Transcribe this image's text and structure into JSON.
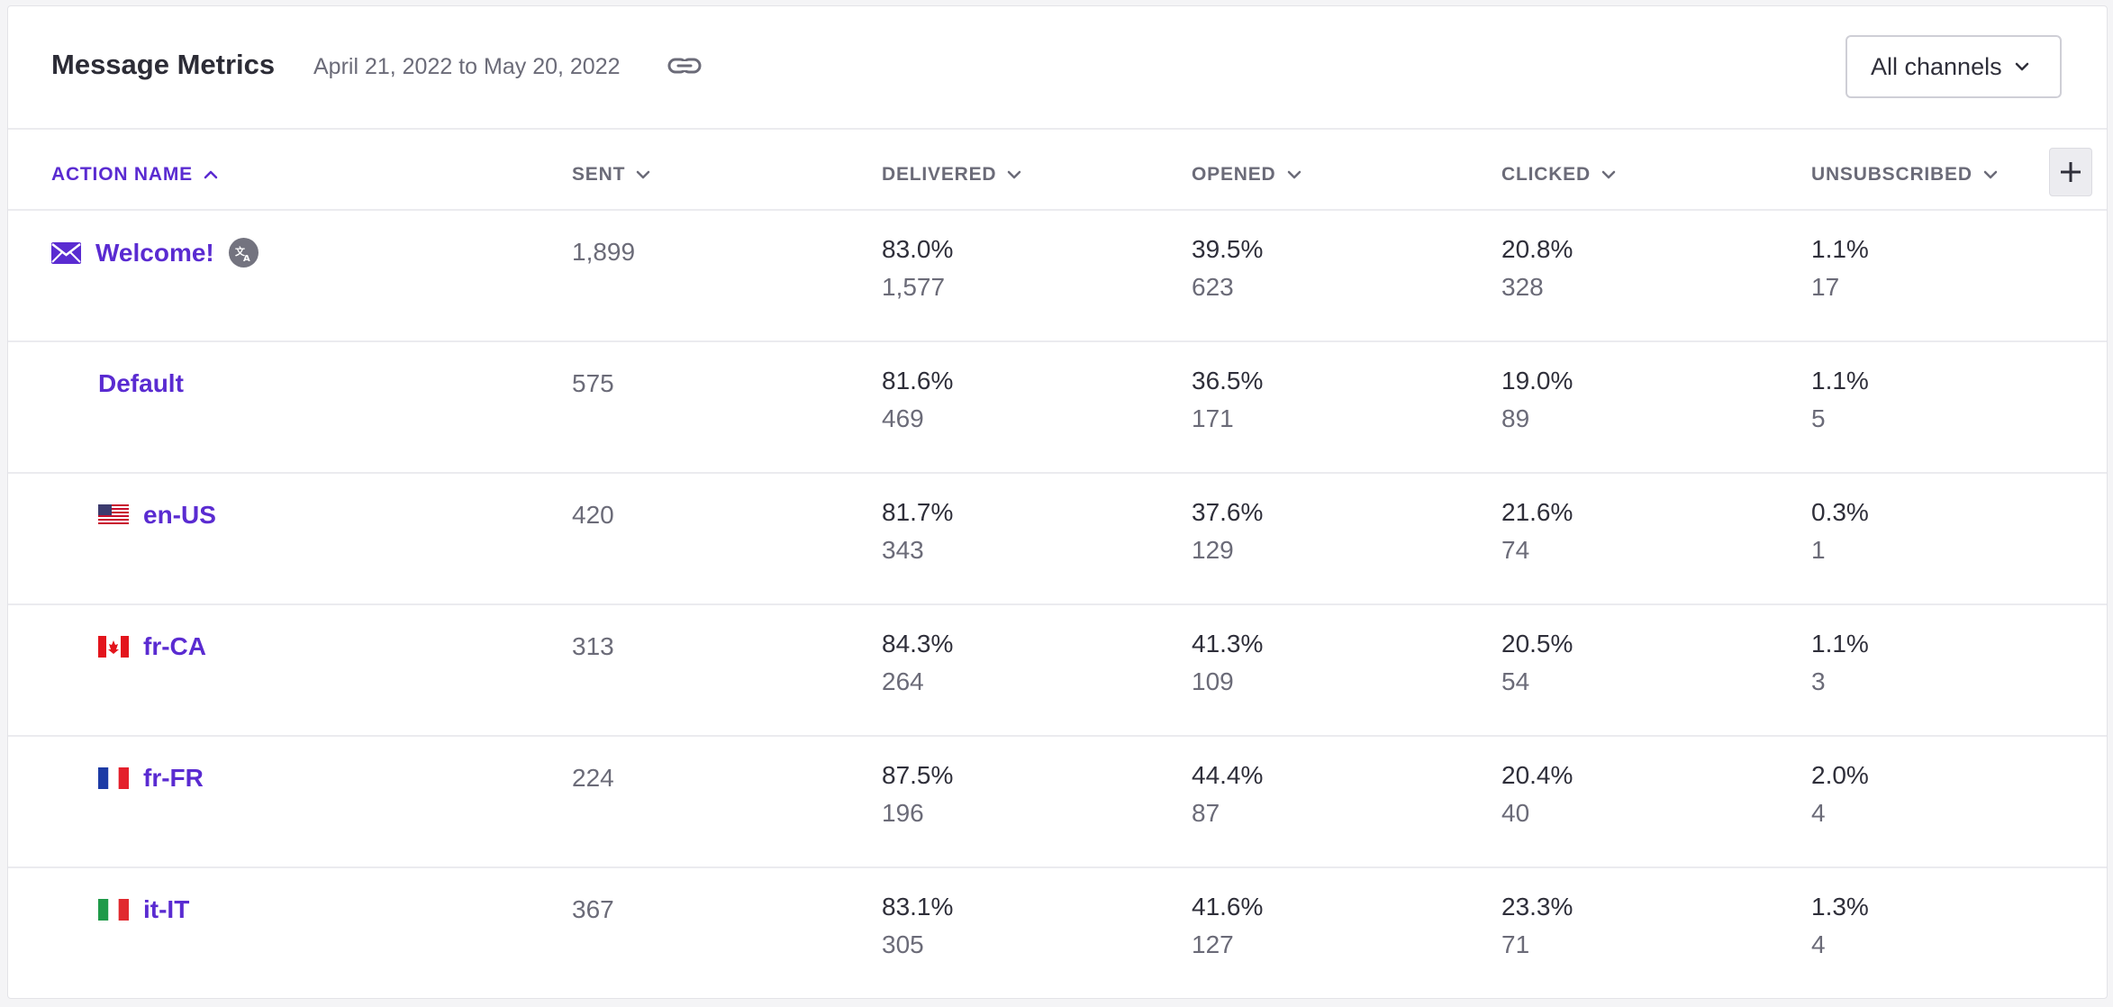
{
  "header": {
    "title": "Message Metrics",
    "date_range": "April 21, 2022 to May 20, 2022",
    "channel_filter": "All channels"
  },
  "columns": {
    "action_name": "ACTION NAME",
    "sent": "SENT",
    "delivered": "DELIVERED",
    "opened": "OPENED",
    "clicked": "CLICKED",
    "unsubscribed": "UNSUBSCRIBED"
  },
  "colors": {
    "accent": "#5a2bd1",
    "muted": "#6b6b78",
    "text": "#2f2f3a"
  },
  "rows": [
    {
      "name": "Welcome!",
      "icon": "envelope-icon",
      "sent": "1,899",
      "delivered_pct": "83.0%",
      "delivered": "1,577",
      "opened_pct": "39.5%",
      "opened": "623",
      "clicked_pct": "20.8%",
      "clicked": "328",
      "unsub_pct": "1.1%",
      "unsub": "17"
    },
    {
      "name": "Default",
      "icon": "",
      "sent": "575",
      "delivered_pct": "81.6%",
      "delivered": "469",
      "opened_pct": "36.5%",
      "opened": "171",
      "clicked_pct": "19.0%",
      "clicked": "89",
      "unsub_pct": "1.1%",
      "unsub": "5"
    },
    {
      "name": "en-US",
      "icon": "us-flag-icon",
      "sent": "420",
      "delivered_pct": "81.7%",
      "delivered": "343",
      "opened_pct": "37.6%",
      "opened": "129",
      "clicked_pct": "21.6%",
      "clicked": "74",
      "unsub_pct": "0.3%",
      "unsub": "1"
    },
    {
      "name": "fr-CA",
      "icon": "canada-flag-icon",
      "sent": "313",
      "delivered_pct": "84.3%",
      "delivered": "264",
      "opened_pct": "41.3%",
      "opened": "109",
      "clicked_pct": "20.5%",
      "clicked": "54",
      "unsub_pct": "1.1%",
      "unsub": "3"
    },
    {
      "name": "fr-FR",
      "icon": "france-flag-icon",
      "sent": "224",
      "delivered_pct": "87.5%",
      "delivered": "196",
      "opened_pct": "44.4%",
      "opened": "87",
      "clicked_pct": "20.4%",
      "clicked": "40",
      "unsub_pct": "2.0%",
      "unsub": "4"
    },
    {
      "name": "it-IT",
      "icon": "italy-flag-icon",
      "sent": "367",
      "delivered_pct": "83.1%",
      "delivered": "305",
      "opened_pct": "41.6%",
      "opened": "127",
      "clicked_pct": "23.3%",
      "clicked": "71",
      "unsub_pct": "1.3%",
      "unsub": "4"
    }
  ]
}
